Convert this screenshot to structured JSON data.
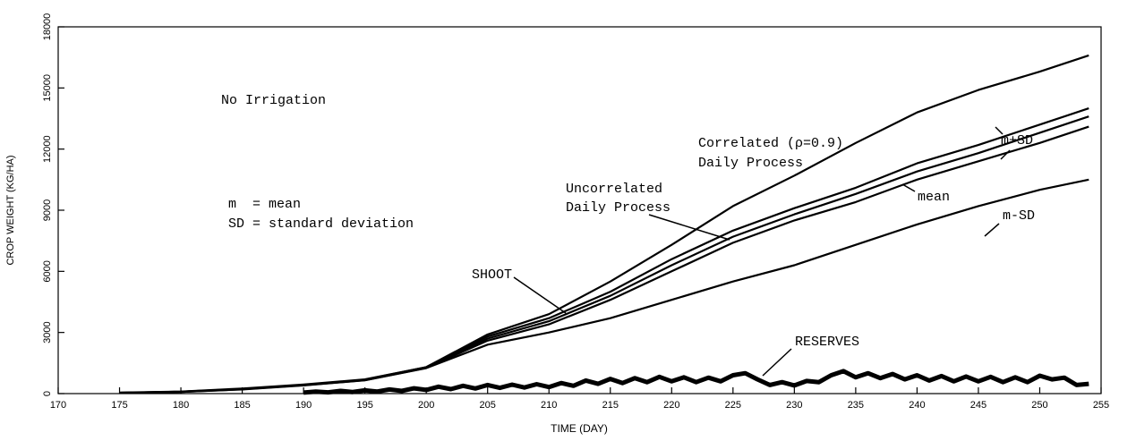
{
  "chart_data": {
    "type": "line",
    "xlabel": "TIME (DAY)",
    "ylabel": "CROP WEIGHT (KG/HA)",
    "annotations": [
      "No Irrigation",
      "m  = mean",
      "SD = standard deviation",
      "Correlated (ρ=0.9)",
      "Daily Process",
      "Uncorrelated",
      "Daily Process",
      "SHOOT",
      "RESERVES",
      "m+SD",
      "mean",
      "m-SD"
    ],
    "xlim": [
      170,
      255
    ],
    "xticks": [
      170,
      175,
      180,
      185,
      190,
      195,
      200,
      205,
      210,
      215,
      220,
      225,
      230,
      235,
      240,
      245,
      250,
      255
    ],
    "ylim": [
      0,
      18000
    ],
    "yticks": [
      0,
      3000,
      6000,
      9000,
      12000,
      15000,
      18000
    ],
    "grid": false,
    "series": [
      {
        "color": "#000000",
        "x": [
          175,
          180,
          185,
          190,
          195,
          200,
          205,
          210,
          215,
          220,
          225,
          230,
          235,
          240,
          245,
          250,
          254
        ],
        "values": [
          50,
          100,
          250,
          450,
          700,
          1300,
          2900,
          3900,
          5500,
          7300,
          9200,
          10700,
          12300,
          13800,
          14900,
          15800,
          16600
        ]
      },
      {
        "color": "#000000",
        "x": [
          175,
          180,
          185,
          190,
          195,
          200,
          205,
          210,
          215,
          220,
          225,
          230,
          235,
          240,
          245,
          250,
          254
        ],
        "values": [
          40,
          90,
          230,
          430,
          680,
          1300,
          2800,
          3700,
          5000,
          6600,
          8000,
          9100,
          10100,
          11300,
          12200,
          13200,
          14000
        ]
      },
      {
        "color": "#000000",
        "x": [
          175,
          180,
          185,
          190,
          195,
          200,
          205,
          210,
          215,
          220,
          225,
          230,
          235,
          240,
          245,
          250,
          254
        ],
        "values": [
          40,
          90,
          220,
          420,
          670,
          1280,
          2700,
          3550,
          4800,
          6300,
          7700,
          8800,
          9800,
          10900,
          11800,
          12800,
          13600
        ]
      },
      {
        "color": "#000000",
        "x": [
          175,
          180,
          185,
          190,
          195,
          200,
          205,
          210,
          215,
          220,
          225,
          230,
          235,
          240,
          245,
          250,
          254
        ],
        "values": [
          40,
          85,
          210,
          410,
          660,
          1260,
          2600,
          3400,
          4600,
          6000,
          7400,
          8500,
          9400,
          10500,
          11400,
          12300,
          13100
        ]
      },
      {
        "color": "#000000",
        "x": [
          175,
          180,
          185,
          190,
          195,
          200,
          205,
          210,
          215,
          220,
          225,
          230,
          235,
          240,
          245,
          250,
          254
        ],
        "values": [
          30,
          80,
          200,
          400,
          650,
          1250,
          2400,
          3000,
          3700,
          4600,
          5500,
          6300,
          7300,
          8300,
          9200,
          10000,
          10500
        ]
      },
      {
        "color": "#000000",
        "x": [
          190,
          191,
          192,
          193,
          194,
          195,
          196,
          197,
          198,
          199,
          200,
          201,
          202,
          203,
          204,
          205,
          206,
          207,
          208,
          209,
          210,
          211,
          212,
          213,
          214,
          215,
          216,
          217,
          218,
          219,
          220,
          221,
          222,
          223,
          224,
          225,
          226,
          227,
          228,
          229,
          230,
          231,
          232,
          233,
          234,
          235,
          236,
          237,
          238,
          239,
          240,
          241,
          242,
          243,
          244,
          245,
          246,
          247,
          248,
          249,
          250,
          251,
          252,
          253,
          254
        ],
        "values": [
          50,
          100,
          60,
          130,
          80,
          160,
          100,
          200,
          130,
          260,
          180,
          340,
          220,
          380,
          250,
          420,
          280,
          440,
          300,
          460,
          320,
          520,
          380,
          640,
          480,
          720,
          520,
          760,
          560,
          820,
          600,
          800,
          560,
          780,
          600,
          900,
          1000,
          700,
          420,
          560,
          400,
          620,
          560,
          900,
          1100,
          800,
          1000,
          760,
          960,
          700,
          900,
          640,
          860,
          600,
          840,
          600,
          820,
          560,
          800,
          560,
          880,
          700,
          780,
          420,
          480
        ]
      }
    ]
  }
}
